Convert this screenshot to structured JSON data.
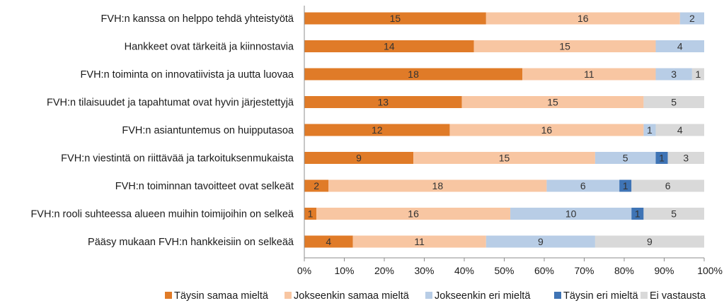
{
  "chart_data": {
    "type": "bar",
    "orientation": "horizontal",
    "stacked": true,
    "percent_stacked": true,
    "categories": [
      "FVH:n kanssa on helppo tehdä yhteistyötä",
      "Hankkeet ovat tärkeitä ja kiinnostavia",
      "FVH:n toiminta on innovatiivista ja uutta luovaa",
      "FVH:n tilaisuudet ja tapahtumat ovat hyvin järjestettyjä",
      "FVH:n asiantuntemus on huipputasoa",
      "FVH:n viestintä on riittävää ja tarkoituksenmukaista",
      "FVH:n toiminnan tavoitteet ovat selkeät",
      "FVH:n rooli suhteessa alueen muihin toimijoihin on selkeä",
      "Pääsy mukaan FVH:n hankkeisiin on selkeää"
    ],
    "series": [
      {
        "name": "Täysin samaa mieltä",
        "color": "#e07b28",
        "values": [
          15,
          14,
          18,
          13,
          12,
          9,
          2,
          1,
          4
        ]
      },
      {
        "name": "Jokseenkin samaa mieltä",
        "color": "#f8c6a2",
        "values": [
          16,
          15,
          11,
          15,
          16,
          15,
          18,
          16,
          11
        ]
      },
      {
        "name": "Jokseenkin eri mieltä",
        "color": "#b8cde6",
        "values": [
          2,
          4,
          3,
          0,
          1,
          5,
          6,
          10,
          9
        ]
      },
      {
        "name": "Täysin eri mieltä",
        "color": "#3f74b5",
        "values": [
          0,
          0,
          0,
          0,
          0,
          1,
          1,
          1,
          0
        ]
      },
      {
        "name": "Ei vastausta",
        "color": "#d9d9d9",
        "values": [
          0,
          0,
          1,
          5,
          4,
          3,
          6,
          5,
          9
        ]
      }
    ],
    "xlim": [
      0,
      100
    ],
    "x_ticks": [
      "0%",
      "10%",
      "20%",
      "30%",
      "40%",
      "50%",
      "60%",
      "70%",
      "80%",
      "90%",
      "100%"
    ],
    "legend_position": "bottom",
    "grid": false
  }
}
